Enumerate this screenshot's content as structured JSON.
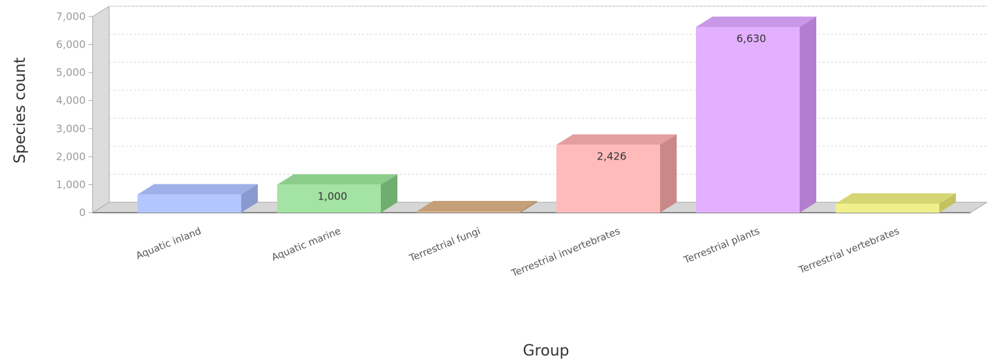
{
  "chart_data": {
    "type": "bar",
    "style": "3d",
    "xlabel": "Group",
    "ylabel": "Species count",
    "ylim": [
      0,
      7000
    ],
    "yticks": [
      0,
      1000,
      2000,
      3000,
      4000,
      5000,
      6000,
      7000
    ],
    "ytick_labels": [
      "0",
      "1,000",
      "2,000",
      "3,000",
      "4,000",
      "5,000",
      "6,000",
      "7,000"
    ],
    "grid": true,
    "categories": [
      "Aquatic inland",
      "Aquatic marine",
      "Terrestrial fungi",
      "Terrestrial invertebrates",
      "Terrestrial plants",
      "Terrestrial vertebrates"
    ],
    "values": [
      650,
      1000,
      50,
      2426,
      6630,
      320
    ],
    "data_labels": [
      "",
      "1,000",
      "",
      "2,426",
      "6,630",
      ""
    ],
    "colors": [
      "#b3c6ff",
      "#a3e3a3",
      "#d9b48c",
      "#ffbaba",
      "#e2b0ff",
      "#f0f08c"
    ],
    "side_colors": [
      "#8a9ad0",
      "#6fae6f",
      "#b08a63",
      "#c98989",
      "#b27fd0",
      "#c3c35f"
    ],
    "top_colors": [
      "#9fb0e8",
      "#8ccd8c",
      "#c49f77",
      "#e39f9f",
      "#c998e8",
      "#d6d674"
    ]
  }
}
